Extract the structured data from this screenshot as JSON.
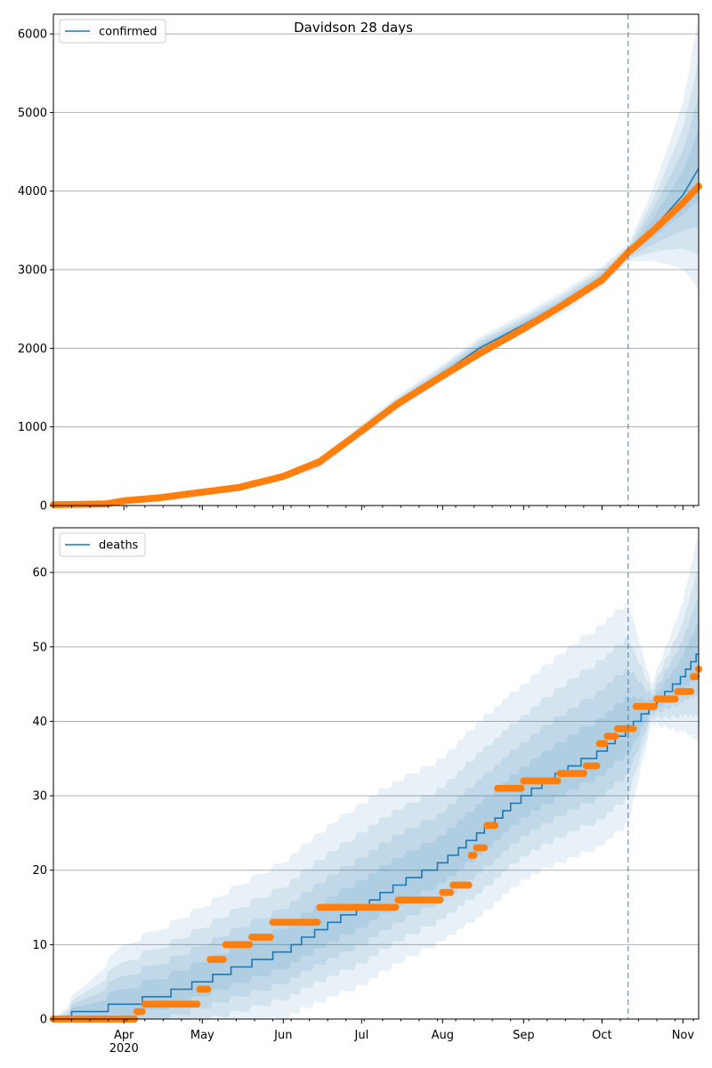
{
  "title": "Davidson 28 days",
  "colors": {
    "model_line": "#1f77b4",
    "observed_points": "#ff7f0e",
    "band_fill": "#1f77b4",
    "grid": "#b0b0b0",
    "forecast_marker": "#1f77b4"
  },
  "x_axis": {
    "type": "date",
    "range": [
      "2020-03-05",
      "2020-11-07"
    ],
    "tick_labels": [
      {
        "date": "2020-04-01",
        "label": "Apr"
      },
      {
        "date": "2020-05-01",
        "label": "May"
      },
      {
        "date": "2020-06-01",
        "label": "Jun"
      },
      {
        "date": "2020-07-01",
        "label": "Jul"
      },
      {
        "date": "2020-08-01",
        "label": "Aug"
      },
      {
        "date": "2020-09-01",
        "label": "Sep"
      },
      {
        "date": "2020-10-01",
        "label": "Oct"
      },
      {
        "date": "2020-11-01",
        "label": "Nov"
      }
    ],
    "year_label": "2020",
    "forecast_start": "2020-10-11"
  },
  "chart_data": [
    {
      "type": "line",
      "legend": "confirmed",
      "legend_position": "upper-left",
      "grid": "horizontal",
      "ylim": [
        0,
        6250
      ],
      "yticks": [
        0,
        1000,
        2000,
        3000,
        4000,
        5000,
        6000
      ],
      "model_series": {
        "name": "confirmed",
        "x": [
          "2020-03-05",
          "2020-04-01",
          "2020-04-15",
          "2020-05-01",
          "2020-05-15",
          "2020-06-01",
          "2020-06-15",
          "2020-07-01",
          "2020-07-15",
          "2020-08-01",
          "2020-08-15",
          "2020-09-01",
          "2020-09-15",
          "2020-10-01",
          "2020-10-11",
          "2020-10-20",
          "2020-11-01",
          "2020-11-07"
        ],
        "y": [
          5,
          25,
          90,
          170,
          240,
          360,
          520,
          950,
          1300,
          1680,
          2000,
          2300,
          2550,
          2900,
          3200,
          3500,
          3950,
          4290
        ],
        "band_widths": [
          [
            0,
            0.02,
            0.05,
            0.07,
            0.1,
            0.12,
            0.1,
            0.09,
            0.08,
            0.07,
            0.07,
            0.06,
            0.06,
            0.05,
            0.04,
            0.14,
            0.3,
            0.45
          ]
        ]
      },
      "observed": {
        "x": [
          "2020-03-05",
          "2020-03-25",
          "2020-04-01",
          "2020-04-15",
          "2020-05-01",
          "2020-05-15",
          "2020-06-01",
          "2020-06-15",
          "2020-07-01",
          "2020-07-15",
          "2020-08-01",
          "2020-08-15",
          "2020-09-01",
          "2020-09-15",
          "2020-10-01",
          "2020-10-11",
          "2020-10-20",
          "2020-11-01",
          "2020-11-07"
        ],
        "y": [
          10,
          20,
          60,
          100,
          170,
          230,
          370,
          560,
          950,
          1300,
          1650,
          1930,
          2250,
          2530,
          2870,
          3220,
          3480,
          3850,
          4060
        ]
      }
    },
    {
      "type": "line",
      "legend": "deaths",
      "legend_position": "upper-left",
      "grid": "horizontal",
      "ylim": [
        0,
        66
      ],
      "yticks": [
        0,
        10,
        20,
        30,
        40,
        50,
        60
      ],
      "model_series": {
        "name": "deaths",
        "x": [
          "2020-03-05",
          "2020-04-01",
          "2020-04-15",
          "2020-05-01",
          "2020-05-15",
          "2020-06-01",
          "2020-06-15",
          "2020-07-01",
          "2020-07-15",
          "2020-08-01",
          "2020-08-15",
          "2020-09-01",
          "2020-09-15",
          "2020-10-01",
          "2020-10-11",
          "2020-10-20",
          "2020-11-01",
          "2020-11-07"
        ],
        "y": [
          0,
          2,
          3,
          5,
          7,
          9,
          12,
          15,
          18,
          21,
          25,
          30,
          33,
          36,
          39,
          42,
          46,
          49
        ],
        "band_widths": [
          [
            0,
            8,
            9,
            10,
            11,
            12,
            13,
            14,
            14,
            14,
            15,
            15,
            16,
            17,
            17,
            3,
            10,
            16
          ]
        ]
      },
      "observed": {
        "x": [
          "2020-03-05",
          "2020-04-06",
          "2020-04-09",
          "2020-04-30",
          "2020-05-04",
          "2020-05-10",
          "2020-05-20",
          "2020-05-28",
          "2020-06-15",
          "2020-07-01",
          "2020-07-15",
          "2020-08-01",
          "2020-08-05",
          "2020-08-12",
          "2020-08-14",
          "2020-08-18",
          "2020-08-22",
          "2020-09-01",
          "2020-09-12",
          "2020-09-15",
          "2020-09-25",
          "2020-09-30",
          "2020-10-03",
          "2020-10-07",
          "2020-10-11",
          "2020-10-14",
          "2020-10-22",
          "2020-10-30",
          "2020-11-05",
          "2020-11-07"
        ],
        "y": [
          0,
          1,
          2,
          4,
          8,
          10,
          11,
          13,
          15,
          15,
          16,
          17,
          18,
          22,
          23,
          26,
          31,
          32,
          32,
          33,
          34,
          37,
          38,
          39,
          39,
          42,
          43,
          44,
          46,
          47
        ]
      }
    }
  ]
}
